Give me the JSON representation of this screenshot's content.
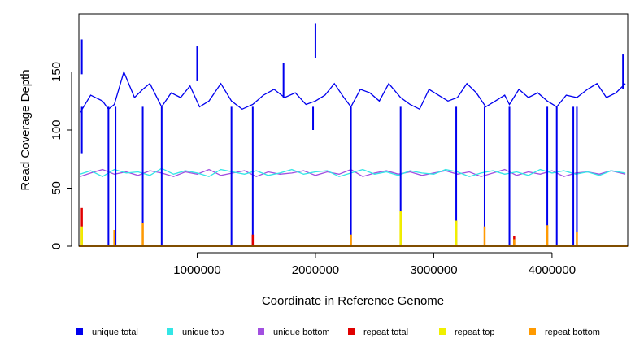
{
  "chart_data": {
    "type": "line",
    "title": "",
    "xlabel": "Coordinate in Reference Genome",
    "ylabel": "Read Coverage Depth",
    "xlim": [
      0,
      4640000
    ],
    "ylim": [
      0,
      200
    ],
    "x_ticks": [
      1000000,
      2000000,
      3000000,
      4000000
    ],
    "x_tick_labels": [
      "1000000",
      "2000000",
      "3000000",
      "4000000"
    ],
    "y_ticks": [
      0,
      50,
      100,
      150
    ],
    "y_tick_labels": [
      "0",
      "50",
      "100",
      "150"
    ],
    "grid": false,
    "legend_position": "bottom",
    "colors": {
      "unique_total": "#0000EE",
      "unique_top": "#33E6E6",
      "unique_bottom": "#A24FE0",
      "repeat_total": "#E00000",
      "repeat_top": "#F0F000",
      "repeat_bottom": "#FF9A00"
    },
    "legend": [
      {
        "label": "unique total",
        "key": "unique_total"
      },
      {
        "label": "unique top",
        "key": "unique_top"
      },
      {
        "label": "unique bottom",
        "key": "unique_bottom"
      },
      {
        "label": "repeat total",
        "key": "repeat_total"
      },
      {
        "label": "repeat top",
        "key": "repeat_top"
      },
      {
        "label": "repeat bottom",
        "key": "repeat_bottom"
      }
    ],
    "series": [
      {
        "name": "unique total",
        "x": [
          10000,
          100000,
          200000,
          250000,
          300000,
          380000,
          470000,
          540000,
          600000,
          700000,
          780000,
          860000,
          940000,
          1020000,
          1100000,
          1200000,
          1290000,
          1380000,
          1470000,
          1560000,
          1650000,
          1740000,
          1830000,
          1920000,
          2000000,
          2080000,
          2160000,
          2240000,
          2300000,
          2380000,
          2460000,
          2540000,
          2620000,
          2720000,
          2800000,
          2880000,
          2960000,
          3040000,
          3120000,
          3200000,
          3280000,
          3360000,
          3440000,
          3520000,
          3600000,
          3640000,
          3720000,
          3800000,
          3880000,
          3960000,
          4040000,
          4120000,
          4210000,
          4300000,
          4380000,
          4460000,
          4540000,
          4620000
        ],
        "y": [
          115,
          130,
          125,
          118,
          122,
          150,
          128,
          135,
          140,
          120,
          132,
          128,
          138,
          120,
          125,
          140,
          125,
          118,
          122,
          130,
          135,
          128,
          132,
          122,
          125,
          130,
          140,
          128,
          120,
          135,
          132,
          125,
          140,
          128,
          122,
          118,
          135,
          130,
          125,
          128,
          140,
          132,
          120,
          125,
          130,
          122,
          135,
          128,
          132,
          125,
          120,
          130,
          128,
          135,
          140,
          128,
          132,
          140
        ],
        "spikes": [
          [
            25000,
            178
          ],
          [
            1000000,
            172
          ],
          [
            1730000,
            158
          ],
          [
            2000000,
            192
          ],
          [
            4600000,
            165
          ]
        ],
        "drops": [
          [
            25000,
            80
          ],
          [
            250000,
            0
          ],
          [
            310000,
            0
          ],
          [
            540000,
            0
          ],
          [
            700000,
            0
          ],
          [
            1290000,
            0
          ],
          [
            1470000,
            0
          ],
          [
            1980000,
            100
          ],
          [
            2300000,
            0
          ],
          [
            2720000,
            0
          ],
          [
            3190000,
            0
          ],
          [
            3430000,
            0
          ],
          [
            3640000,
            0
          ],
          [
            3960000,
            0
          ],
          [
            4040000,
            0
          ],
          [
            4180000,
            0
          ],
          [
            4210000,
            0
          ]
        ]
      },
      {
        "name": "unique top",
        "x": [
          10000,
          100000,
          200000,
          300000,
          400000,
          500000,
          600000,
          700000,
          800000,
          900000,
          1000000,
          1100000,
          1200000,
          1300000,
          1400000,
          1500000,
          1600000,
          1700000,
          1800000,
          1900000,
          2000000,
          2100000,
          2200000,
          2300000,
          2400000,
          2500000,
          2600000,
          2700000,
          2800000,
          2900000,
          3000000,
          3100000,
          3200000,
          3300000,
          3400000,
          3500000,
          3600000,
          3700000,
          3800000,
          3900000,
          4000000,
          4100000,
          4200000,
          4300000,
          4400000,
          4500000,
          4620000
        ],
        "y": [
          62,
          65,
          60,
          66,
          63,
          64,
          61,
          67,
          62,
          65,
          63,
          60,
          66,
          64,
          62,
          65,
          61,
          63,
          66,
          62,
          64,
          65,
          60,
          63,
          66,
          62,
          64,
          61,
          65,
          63,
          62,
          66,
          64,
          60,
          63,
          65,
          62,
          64,
          61,
          66,
          63,
          65,
          62,
          64,
          61,
          65,
          63
        ]
      },
      {
        "name": "unique bottom",
        "x": [
          10000,
          100000,
          200000,
          300000,
          400000,
          500000,
          600000,
          700000,
          800000,
          900000,
          1000000,
          1100000,
          1200000,
          1300000,
          1400000,
          1500000,
          1600000,
          1700000,
          1800000,
          1900000,
          2000000,
          2100000,
          2200000,
          2300000,
          2400000,
          2500000,
          2600000,
          2700000,
          2800000,
          2900000,
          3000000,
          3100000,
          3200000,
          3300000,
          3400000,
          3500000,
          3600000,
          3700000,
          3800000,
          3900000,
          4000000,
          4100000,
          4200000,
          4300000,
          4400000,
          4500000,
          4620000
        ],
        "y": [
          60,
          63,
          66,
          62,
          64,
          61,
          65,
          63,
          60,
          64,
          62,
          66,
          61,
          63,
          65,
          60,
          64,
          62,
          63,
          65,
          61,
          64,
          62,
          66,
          60,
          63,
          65,
          62,
          64,
          61,
          63,
          65,
          62,
          64,
          60,
          63,
          66,
          61,
          64,
          62,
          65,
          60,
          63,
          64,
          62,
          65,
          62
        ]
      },
      {
        "name": "repeat total",
        "x": [
          25000,
          1470000,
          3680000
        ],
        "y": [
          33,
          10,
          9
        ]
      },
      {
        "name": "repeat top",
        "x": [
          25000,
          2720000,
          3190000
        ],
        "y": [
          17,
          30,
          22
        ]
      },
      {
        "name": "repeat bottom",
        "x": [
          25000,
          300000,
          540000,
          2300000,
          2720000,
          3190000,
          3430000,
          3680000,
          3960000,
          4210000
        ],
        "y": [
          16,
          14,
          20,
          10,
          30,
          22,
          17,
          6,
          18,
          12
        ]
      }
    ]
  }
}
